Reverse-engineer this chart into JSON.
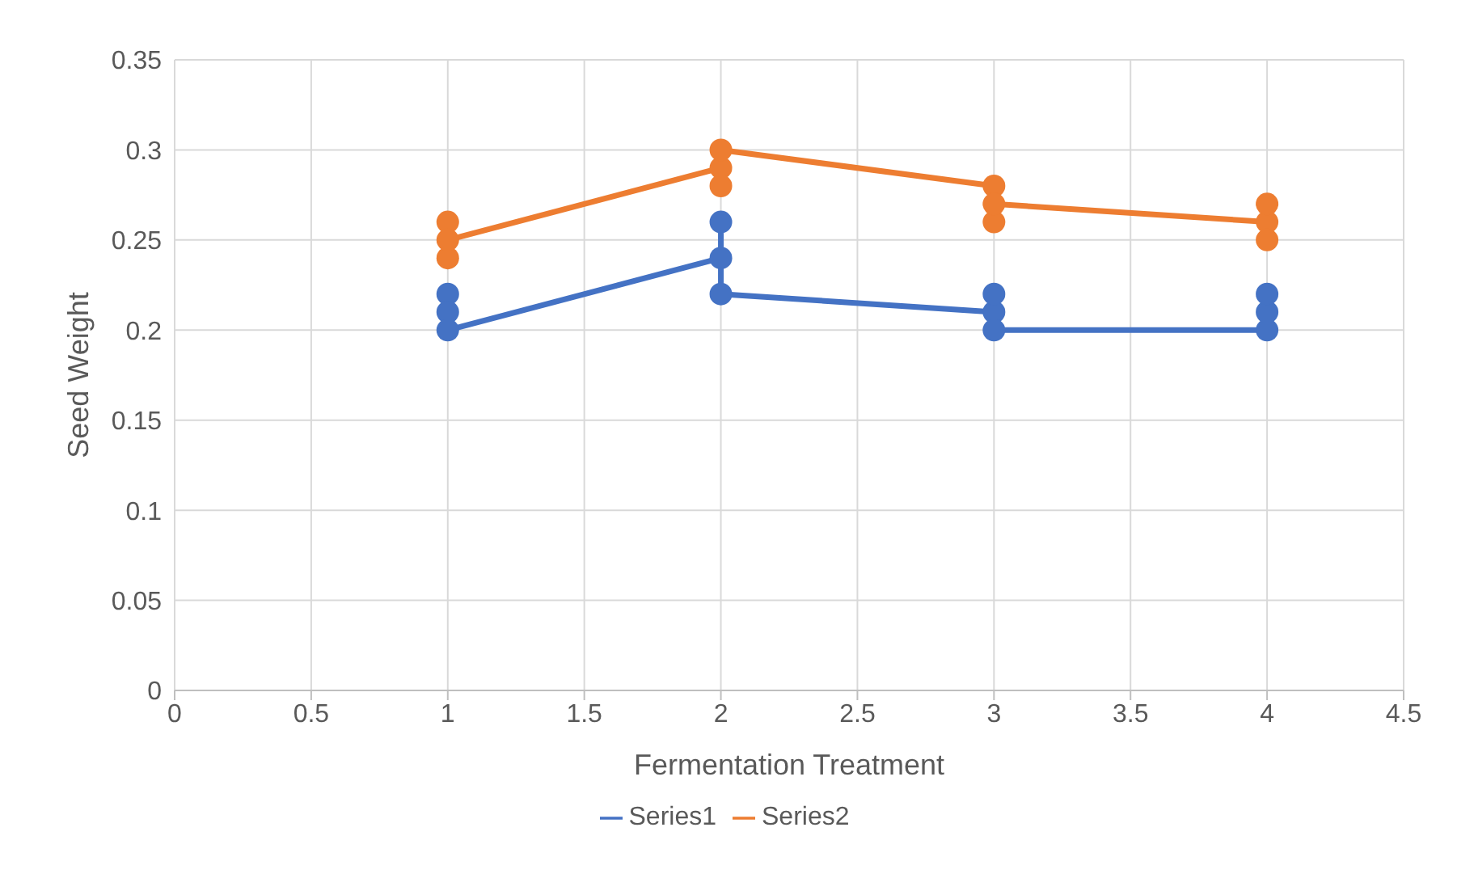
{
  "chart_data": {
    "type": "line",
    "xlabel": "Fermentation Treatment",
    "ylabel": "Seed Weight",
    "xlim": [
      0,
      4.5
    ],
    "xticks": [
      0,
      0.5,
      1,
      1.5,
      2,
      2.5,
      3,
      3.5,
      4,
      4.5
    ],
    "ylim": [
      0,
      0.35
    ],
    "yticks": [
      0,
      0.05,
      0.1,
      0.15,
      0.2,
      0.25,
      0.3,
      0.35
    ],
    "grid": true,
    "legend": "bottom",
    "marker": "circle",
    "line_style": "solid",
    "series": [
      {
        "name": "Series1",
        "color": "#4472c4",
        "x": [
          1,
          1,
          1,
          2,
          2,
          2,
          3,
          3,
          3,
          4,
          4,
          4
        ],
        "values": [
          0.22,
          0.21,
          0.2,
          0.24,
          0.26,
          0.22,
          0.21,
          0.22,
          0.2,
          0.2,
          0.21,
          0.22
        ]
      },
      {
        "name": "Series2",
        "color": "#ed7d31",
        "x": [
          1,
          1,
          1,
          2,
          2,
          2,
          3,
          3,
          3,
          4,
          4,
          4
        ],
        "values": [
          0.26,
          0.24,
          0.25,
          0.29,
          0.28,
          0.3,
          0.28,
          0.26,
          0.27,
          0.26,
          0.27,
          0.25
        ]
      }
    ]
  }
}
